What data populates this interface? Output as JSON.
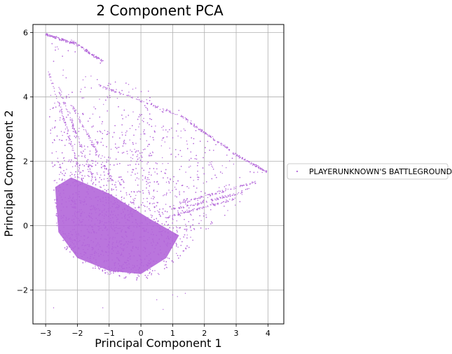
{
  "chart_data": {
    "type": "scatter",
    "title": "2 Component PCA",
    "xlabel": "Principal Component 1",
    "ylabel": "Principal Component 2",
    "xlim": [
      -3.4,
      4.5
    ],
    "ylim": [
      -3.05,
      6.25
    ],
    "xticks": [
      -3,
      -2,
      -1,
      0,
      1,
      2,
      3,
      4
    ],
    "yticks": [
      -2,
      0,
      2,
      4,
      6
    ],
    "grid": true,
    "legend_position": "right",
    "series": [
      {
        "name": "PLAYERUNKNOWN'S BATTLEGROUNDS",
        "color": "#b366d9",
        "density_hull": [
          [
            -3.0,
            6.0
          ],
          [
            -2.3,
            5.8
          ],
          [
            -1.5,
            5.5
          ],
          [
            -1.0,
            4.5
          ],
          [
            0.0,
            4.4
          ],
          [
            1.5,
            3.4
          ],
          [
            2.5,
            2.4
          ],
          [
            3.3,
            2.15
          ],
          [
            3.9,
            1.75
          ],
          [
            4.05,
            1.6
          ],
          [
            3.6,
            1.3
          ],
          [
            3.2,
            0.8
          ],
          [
            2.5,
            0.2
          ],
          [
            1.8,
            -0.4
          ],
          [
            1.3,
            -0.9
          ],
          [
            0.9,
            -1.3
          ],
          [
            0.6,
            -1.5
          ],
          [
            0.0,
            -1.75
          ],
          [
            -0.6,
            -1.65
          ],
          [
            -1.2,
            -1.45
          ],
          [
            -1.8,
            -1.2
          ],
          [
            -2.3,
            -0.9
          ],
          [
            -2.6,
            -0.4
          ],
          [
            -2.7,
            0.5
          ],
          [
            -2.8,
            1.8
          ],
          [
            -2.9,
            3.5
          ],
          [
            -2.9,
            4.7
          ],
          [
            -2.8,
            5.3
          ]
        ],
        "streaks": [
          {
            "from": [
              -3.0,
              5.95
            ],
            "to": [
              -2.1,
              5.65
            ]
          },
          {
            "from": [
              -2.2,
              5.75
            ],
            "to": [
              -1.2,
              5.1
            ]
          },
          {
            "from": [
              -1.3,
              4.35
            ],
            "to": [
              1.4,
              3.35
            ]
          },
          {
            "from": [
              1.4,
              3.3
            ],
            "to": [
              2.8,
              2.35
            ]
          },
          {
            "from": [
              2.9,
              2.25
            ],
            "to": [
              4.0,
              1.65
            ]
          },
          {
            "from": [
              1.2,
              0.7
            ],
            "to": [
              3.6,
              1.35
            ]
          },
          {
            "from": [
              1.0,
              0.5
            ],
            "to": [
              3.3,
              1.05
            ]
          },
          {
            "from": [
              0.8,
              0.25
            ],
            "to": [
              3.0,
              0.85
            ]
          },
          {
            "from": [
              -2.9,
              4.8
            ],
            "to": [
              -1.9,
              1.6
            ]
          },
          {
            "from": [
              -2.6,
              4.3
            ],
            "to": [
              -1.5,
              1.5
            ]
          },
          {
            "from": [
              -2.2,
              3.8
            ],
            "to": [
              -0.9,
              1.4
            ]
          }
        ],
        "outliers": [
          [
            -2.75,
            -2.55
          ],
          [
            -1.2,
            -2.55
          ],
          [
            0.5,
            -2.3
          ],
          [
            0.7,
            -2.6
          ],
          [
            1.0,
            -2.15
          ],
          [
            1.15,
            -2.2
          ],
          [
            1.4,
            -2.1
          ]
        ]
      }
    ]
  }
}
